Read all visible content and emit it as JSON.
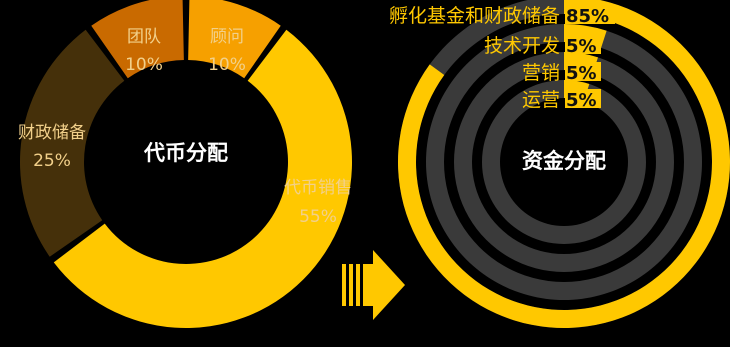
{
  "chart_data": [
    {
      "type": "pie",
      "title": "代币分配",
      "slices": [
        {
          "label": "代币销售",
          "pct_text": "55%",
          "value": 55,
          "color": "#FFC800"
        },
        {
          "label": "财政储备",
          "pct_text": "25%",
          "value": 25,
          "color": "#45300A"
        },
        {
          "label": "团队",
          "pct_text": "10%",
          "value": 10,
          "color": "#C96A00"
        },
        {
          "label": "顾问",
          "pct_text": "10%",
          "value": 10,
          "color": "#F6A000"
        }
      ]
    },
    {
      "type": "pie",
      "title": "资金分配",
      "rings": [
        {
          "label": "孵化基金和财政储备",
          "pct_text": "85%",
          "value": 85
        },
        {
          "label": "技术开发",
          "pct_text": "5%",
          "value": 5
        },
        {
          "label": "营销",
          "pct_text": "5%",
          "value": 5
        },
        {
          "label": "运营",
          "pct_text": "5%",
          "value": 5
        }
      ],
      "colors": {
        "filled": "#FFC800",
        "track": "#3A3A3A",
        "label": "#FFC800",
        "pct_text": "#111111"
      }
    }
  ],
  "colors": {
    "background": "#000000",
    "title": "#FFFFFF",
    "donut_label": "#F2D08A",
    "arrow": "#FFC800"
  }
}
